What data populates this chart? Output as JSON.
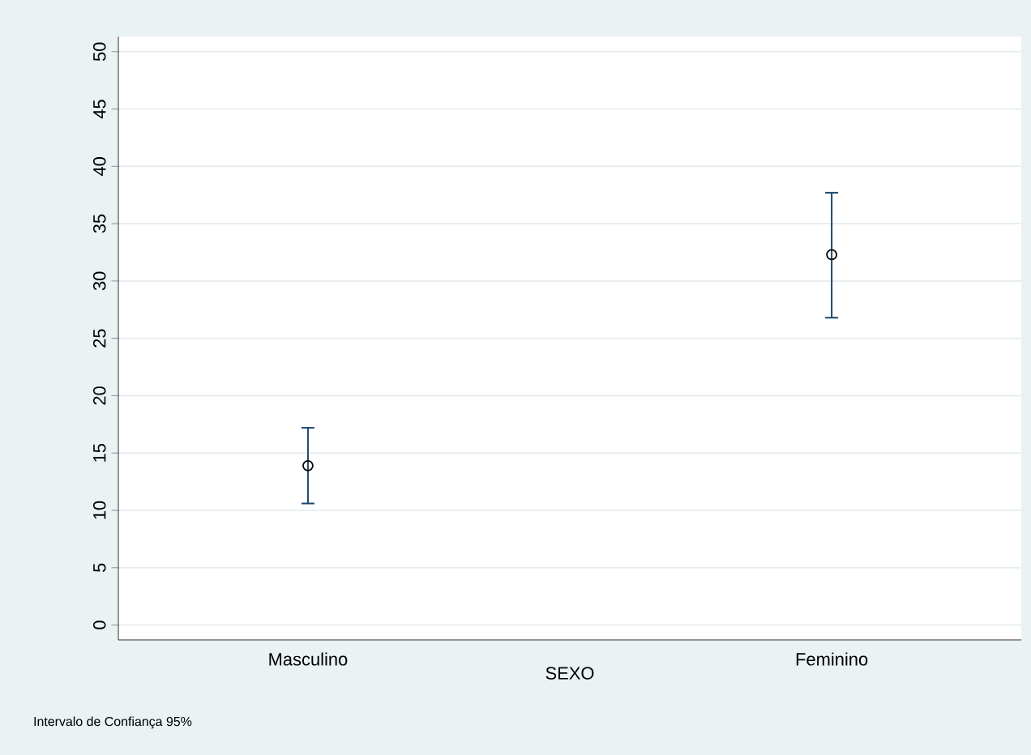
{
  "chart_data": {
    "type": "scatter",
    "xlabel": "SEXO",
    "categories": [
      "Masculino",
      "Feminino"
    ],
    "series": [
      {
        "color": "#000000",
        "values": [
          13.9,
          32.3
        ],
        "errors": [
          [
            10.6,
            17.2
          ],
          [
            26.8,
            37.7
          ]
        ]
      }
    ],
    "ylim": [
      -1.3,
      51.3
    ],
    "yticks": [
      0,
      5,
      10,
      15,
      20,
      25,
      30,
      35,
      40,
      45,
      50
    ],
    "grid": "y",
    "marker": "circle",
    "annotations": [
      "Intervalo de Confiança 95%"
    ]
  }
}
